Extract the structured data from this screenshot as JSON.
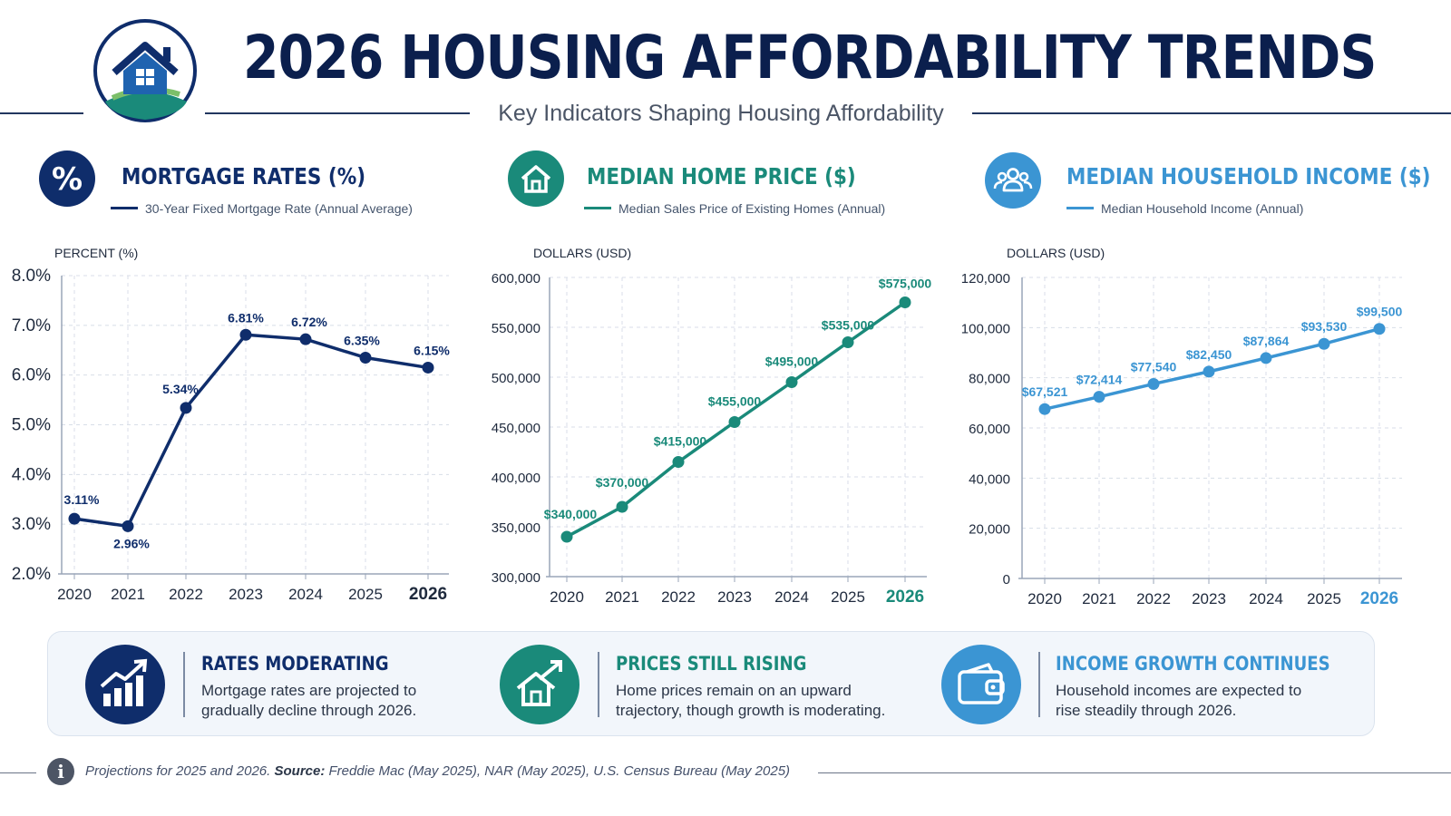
{
  "header": {
    "title": "2026 HOUSING AFFORDABILITY TRENDS",
    "subtitle": "Key Indicators Shaping Housing Affordability",
    "logo_icon": "house-logo-icon"
  },
  "colors": {
    "navy": "#0f2d6b",
    "teal": "#1a8a7a",
    "sky": "#3b95d3",
    "grid": "#d8dee8"
  },
  "panels": [
    {
      "title": "MORTGAGE RATES (%)",
      "legend": "30-Year Fixed Mortgage Rate (Annual Average)",
      "icon": "percent-icon"
    },
    {
      "title": "MEDIAN HOME PRICE ($)",
      "legend": "Median Sales Price of Existing Homes (Annual)",
      "icon": "house-icon"
    },
    {
      "title": "MEDIAN HOUSEHOLD INCOME ($)",
      "legend": "Median Household Income (Annual)",
      "icon": "people-icon"
    }
  ],
  "chart_data": [
    {
      "type": "line",
      "title": "MORTGAGE RATES (%)",
      "ylabel": "PERCENT (%)",
      "x": [
        "2020",
        "2021",
        "2022",
        "2023",
        "2024",
        "2025",
        "2026"
      ],
      "ylim": [
        2,
        8
      ],
      "yticks": [
        "8.0%",
        "7.0%",
        "6.0%",
        "5.0%",
        "4.0%",
        "3.0%",
        "2.0%"
      ],
      "series": [
        {
          "name": "30-Year Fixed Mortgage Rate (Annual Average)",
          "values": [
            3.11,
            2.96,
            5.34,
            6.81,
            6.72,
            6.35,
            6.15
          ],
          "labels": [
            "3.11%",
            "2.96%",
            "5.34%",
            "6.81%",
            "6.72%",
            "6.35%",
            "6.15%"
          ]
        }
      ],
      "grid": true,
      "highlight_x": "2026"
    },
    {
      "type": "line",
      "title": "MEDIAN HOME PRICE ($)",
      "ylabel": "DOLLARS (USD)",
      "x": [
        "2020",
        "2021",
        "2022",
        "2023",
        "2024",
        "2025",
        "2026"
      ],
      "ylim": [
        300000,
        600000
      ],
      "yticks": [
        "600,000",
        "550,000",
        "500,000",
        "450,000",
        "400,000",
        "350,000",
        "300,000"
      ],
      "series": [
        {
          "name": "Median Sales Price of Existing Homes (Annual)",
          "values": [
            340000,
            370000,
            415000,
            455000,
            495000,
            535000,
            575000
          ],
          "labels": [
            "$340,000",
            "$370,000",
            "$415,000",
            "$455,000",
            "$495,000",
            "$535,000",
            "$575,000"
          ]
        }
      ],
      "grid": true,
      "highlight_x": "2026"
    },
    {
      "type": "line",
      "title": "MEDIAN HOUSEHOLD INCOME ($)",
      "ylabel": "DOLLARS (USD)",
      "x": [
        "2020",
        "2021",
        "2022",
        "2023",
        "2024",
        "2025",
        "2026"
      ],
      "ylim": [
        0,
        120000
      ],
      "yticks": [
        "120,000",
        "100,000",
        "80,000",
        "60,000",
        "40,000",
        "20,000",
        "0"
      ],
      "series": [
        {
          "name": "Median Household Income (Annual)",
          "values": [
            67521,
            72414,
            77540,
            82450,
            87864,
            93530,
            99500
          ],
          "labels": [
            "$67,521",
            "$72,414",
            "$77,540",
            "$82,450",
            "$87,864",
            "$93,530",
            "$99,500"
          ]
        }
      ],
      "grid": true,
      "highlight_x": "2026"
    }
  ],
  "insights": [
    {
      "title": "RATES MODERATING",
      "text": "Mortgage rates are projected to gradually decline through 2026.",
      "icon": "rising-bar-chart-icon"
    },
    {
      "title": "PRICES STILL RISING",
      "text": "Home prices remain on an upward trajectory, though growth is moderating.",
      "icon": "house-trend-icon"
    },
    {
      "title": "INCOME GROWTH CONTINUES",
      "text": "Household incomes are expected to rise steadily through 2026.",
      "icon": "wallet-icon"
    }
  ],
  "footer": {
    "icon": "info-icon",
    "projection_note": "Projections for 2025 and 2026.",
    "source_label": "Source:",
    "source_text": "Freddie Mac (May 2025), NAR (May 2025), U.S. Census Bureau (May 2025)"
  }
}
